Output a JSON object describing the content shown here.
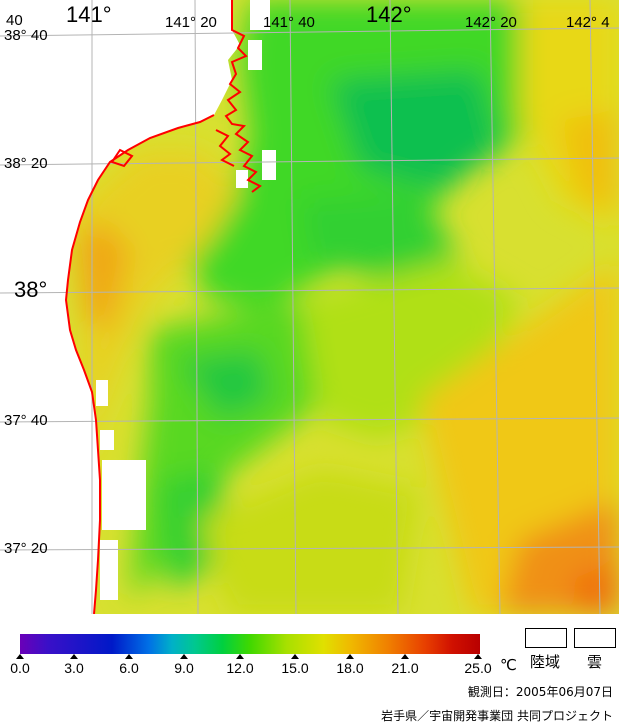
{
  "map": {
    "longitude_labels": [
      {
        "id": "lon-141-00",
        "text": "141°"
      },
      {
        "id": "lon-141-20",
        "text": "141° 20"
      },
      {
        "id": "lon-141-40",
        "text": "141° 40"
      },
      {
        "id": "lon-142-00",
        "text": "142°"
      },
      {
        "id": "lon-142-20",
        "text": "142° 20"
      },
      {
        "id": "lon-142-40",
        "text": "142° 4"
      }
    ],
    "corner_label": "40",
    "latitude_labels": [
      {
        "id": "lat-38-40",
        "text": "38° 40"
      },
      {
        "id": "lat-38-20",
        "text": "38° 20"
      },
      {
        "id": "lat-38-00",
        "text": "38°"
      },
      {
        "id": "lat-37-40",
        "text": "37° 40"
      },
      {
        "id": "lat-37-20",
        "text": "37° 20"
      }
    ],
    "colors": {
      "coastline": "#ff0000",
      "graticule": "#b4b4b4",
      "land": "#ffffff",
      "cloud": "#ffffff"
    }
  },
  "colorbar": {
    "ticks": [
      "0.0",
      "3.0",
      "6.0",
      "9.0",
      "12.0",
      "15.0",
      "18.0",
      "21.0",
      "25.0"
    ],
    "unit": "℃"
  },
  "legend": {
    "land_label": "陸域",
    "cloud_label": "雲"
  },
  "footer": {
    "observation_date": "観測日：2005年06月07日",
    "credit": "岩手県／宇宙開発事業団 共同プロジェクト"
  }
}
